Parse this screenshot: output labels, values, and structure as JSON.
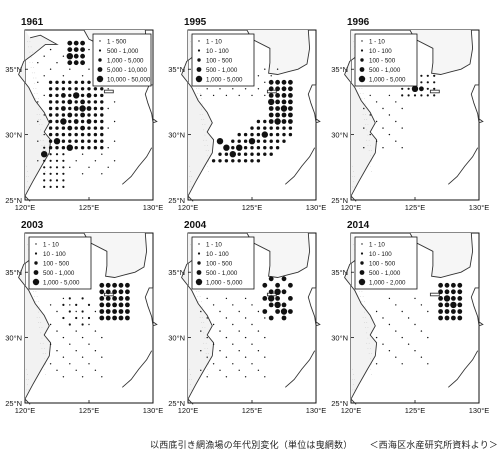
{
  "panels": [
    {
      "year": "1961",
      "legend": [
        "1 - 500",
        "500 - 1,000",
        "1,000 - 5,000",
        "5,000 - 10,000",
        "10,000 - 50,000"
      ],
      "x_ticks": [
        "120°E",
        "125°E",
        "130°E"
      ],
      "y_ticks": [
        "35°N",
        "30°N",
        "25°N"
      ]
    },
    {
      "year": "1995",
      "legend": [
        "1 - 10",
        "10 - 100",
        "100 - 500",
        "500 - 1,000",
        "1,000 - 5,000"
      ],
      "x_ticks": [
        "120°E",
        "125°E",
        "130°E"
      ],
      "y_ticks": [
        "35°N",
        "30°N",
        "25°N"
      ]
    },
    {
      "year": "1996",
      "legend": [
        "1 - 10",
        "10 - 100",
        "100 - 500",
        "500 - 1,000",
        "1,000 - 5,000"
      ],
      "x_ticks": [
        "120°E",
        "125°E",
        "130°E"
      ],
      "y_ticks": [
        "35°N",
        "30°N",
        "25°N"
      ]
    },
    {
      "year": "2003",
      "legend": [
        "1 - 10",
        "10 - 100",
        "100 - 500",
        "500 - 1,000",
        "1,000 - 5,000"
      ],
      "x_ticks": [
        "120°E",
        "125°E",
        "130°E"
      ],
      "y_ticks": [
        "35°N",
        "30°N",
        "25°N"
      ]
    },
    {
      "year": "2004",
      "legend": [
        "1 - 10",
        "10 - 100",
        "100 - 500",
        "500 - 1,000",
        "1,000 - 5,000"
      ],
      "x_ticks": [
        "120°E",
        "125°E",
        "130°E"
      ],
      "y_ticks": [
        "35°N",
        "30°N",
        "25°N"
      ]
    },
    {
      "year": "2014",
      "legend": [
        "1 - 10",
        "10 - 100",
        "100 - 500",
        "500 - 1,000",
        "1,000 - 2,000"
      ],
      "x_ticks": [
        "120°E",
        "125°E",
        "130°E"
      ],
      "y_ticks": [
        "35°N",
        "30°N",
        "25°N"
      ]
    }
  ],
  "caption": "以西底引き網漁場の年代別変化（単位は曳網数）",
  "source": "＜西海区水産研究所資料より＞",
  "colors": {
    "ink": "#111111",
    "coast": "#333333",
    "stipple": "#bbbbbb"
  }
}
